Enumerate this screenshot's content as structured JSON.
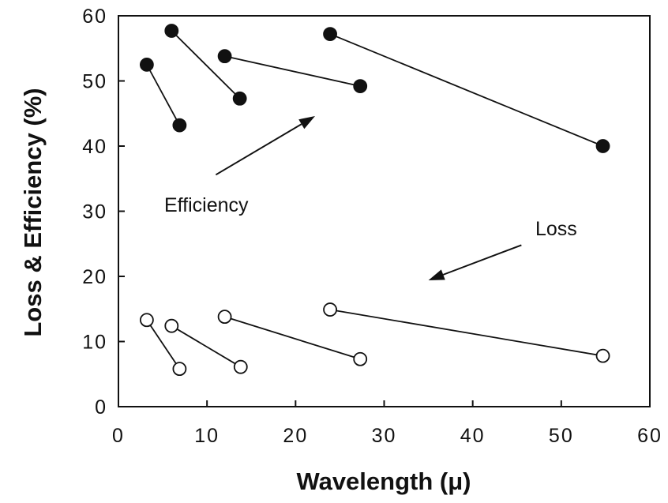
{
  "chart_data": {
    "type": "scatter",
    "title": "",
    "xlabel": "Wavelength  (μ)",
    "ylabel": "Loss & Efficiency (%)",
    "xlim": [
      0,
      60
    ],
    "ylim": [
      0,
      60
    ],
    "xticks": [
      "0",
      "10",
      "20",
      "30",
      "40",
      "50",
      "60"
    ],
    "yticks": [
      "0",
      "10",
      "20",
      "30",
      "40",
      "50",
      "60"
    ],
    "grid": false,
    "series": [
      {
        "marker": "filled-circle",
        "segments": [
          [
            {
              "x": 3.2,
              "y": 52.5
            },
            {
              "x": 6.9,
              "y": 43.2
            }
          ],
          [
            {
              "x": 6.0,
              "y": 57.7
            },
            {
              "x": 13.7,
              "y": 47.3
            }
          ],
          [
            {
              "x": 12.0,
              "y": 53.8
            },
            {
              "x": 27.3,
              "y": 49.2
            }
          ],
          [
            {
              "x": 23.9,
              "y": 57.2
            },
            {
              "x": 54.7,
              "y": 40.0
            }
          ]
        ]
      },
      {
        "marker": "open-circle",
        "segments": [
          [
            {
              "x": 3.2,
              "y": 13.3
            },
            {
              "x": 6.9,
              "y": 5.8
            }
          ],
          [
            {
              "x": 6.0,
              "y": 12.4
            },
            {
              "x": 13.8,
              "y": 6.1
            }
          ],
          [
            {
              "x": 12.0,
              "y": 13.8
            },
            {
              "x": 27.3,
              "y": 7.3
            }
          ],
          [
            {
              "x": 23.9,
              "y": 14.9
            },
            {
              "x": 54.7,
              "y": 7.8
            }
          ]
        ]
      }
    ],
    "annotations": [
      {
        "text": "Efficiency",
        "arrow_from": {
          "x": 11.0,
          "y": 35.6
        },
        "arrow_to": {
          "x": 22.2,
          "y": 44.6
        }
      },
      {
        "text": "Loss",
        "arrow_from": {
          "x": 45.5,
          "y": 24.8
        },
        "arrow_to": {
          "x": 35.0,
          "y": 19.4
        }
      }
    ]
  }
}
